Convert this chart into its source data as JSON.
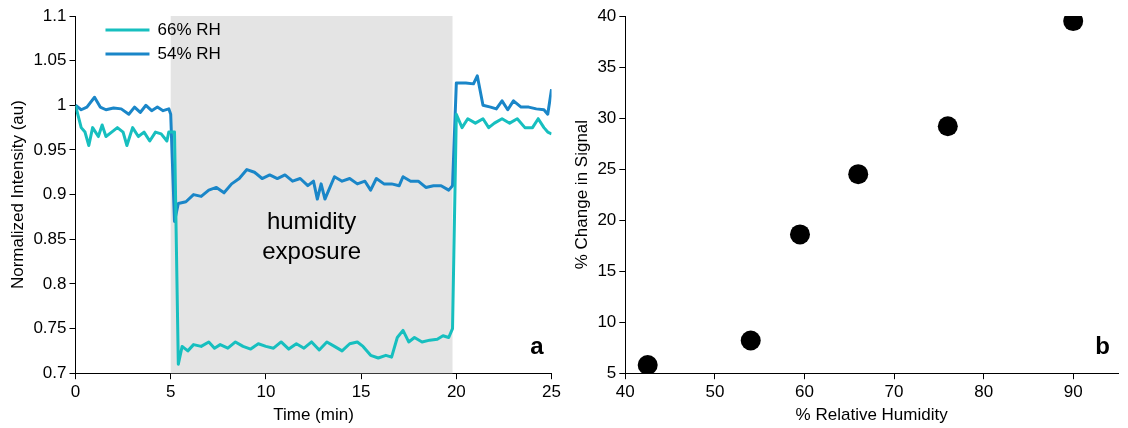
{
  "chart_data": [
    {
      "type": "line",
      "xlabel": "Time (min)",
      "ylabel": "Normalized Intensity (au)",
      "xlim": [
        0,
        25
      ],
      "xticks": [
        0,
        5,
        10,
        15,
        20,
        25
      ],
      "ylim": [
        0.7,
        1.1
      ],
      "yticks": [
        0.7,
        0.75,
        0.8,
        0.85,
        0.9,
        0.95,
        1,
        1.05,
        1.1
      ],
      "legend": "top left",
      "marker": "none",
      "line_style": "solid",
      "bands": [
        {
          "axis": "x",
          "from": 5,
          "to": 19.8,
          "label": "humidity exposure",
          "color": "#e4e4e4"
        }
      ],
      "annotations": [
        "a"
      ],
      "series": [
        {
          "name": "66% RH",
          "color": "#17bfbf",
          "x": [
            0,
            0.3,
            0.5,
            0.7,
            0.9,
            1.2,
            1.4,
            1.6,
            1.9,
            2.2,
            2.5,
            2.7,
            3.0,
            3.3,
            3.6,
            3.9,
            4.2,
            4.5,
            4.8,
            4.9,
            5.2,
            5.4,
            5.6,
            5.9,
            6.2,
            6.6,
            7.0,
            7.3,
            7.6,
            8.0,
            8.4,
            8.8,
            9.2,
            9.6,
            10.0,
            10.4,
            10.8,
            11.2,
            11.6,
            12.0,
            12.4,
            12.8,
            13.2,
            13.6,
            14.0,
            14.4,
            14.8,
            15.1,
            15.5,
            15.9,
            16.3,
            16.6,
            16.9,
            17.2,
            17.5,
            17.8,
            18.2,
            18.6,
            19.0,
            19.3,
            19.6,
            19.8,
            20.0,
            20.3,
            20.6,
            21.0,
            21.4,
            21.7,
            22.0,
            22.4,
            22.8,
            23.2,
            23.6,
            24.0,
            24.3,
            24.6,
            24.8,
            25
          ],
          "values": [
            1.0,
            0.975,
            0.97,
            0.955,
            0.975,
            0.965,
            0.978,
            0.965,
            0.97,
            0.975,
            0.97,
            0.955,
            0.975,
            0.965,
            0.97,
            0.96,
            0.97,
            0.968,
            0.96,
            0.97,
            0.97,
            0.71,
            0.73,
            0.725,
            0.732,
            0.73,
            0.735,
            0.728,
            0.732,
            0.728,
            0.735,
            0.73,
            0.727,
            0.733,
            0.73,
            0.728,
            0.735,
            0.727,
            0.733,
            0.728,
            0.735,
            0.726,
            0.735,
            0.73,
            0.725,
            0.733,
            0.735,
            0.73,
            0.72,
            0.717,
            0.72,
            0.718,
            0.74,
            0.748,
            0.735,
            0.74,
            0.735,
            0.737,
            0.738,
            0.742,
            0.74,
            0.75,
            0.99,
            0.975,
            0.985,
            0.98,
            0.985,
            0.975,
            0.98,
            0.985,
            0.98,
            0.985,
            0.975,
            0.975,
            0.985,
            0.975,
            0.97,
            0.968
          ]
        },
        {
          "name": "54% RH",
          "color": "#1a86c8",
          "x": [
            0,
            0.3,
            0.6,
            1.0,
            1.3,
            1.6,
            2.0,
            2.4,
            2.8,
            3.1,
            3.4,
            3.7,
            4.0,
            4.3,
            4.6,
            4.9,
            5.0,
            5.2,
            5.4,
            5.8,
            6.2,
            6.6,
            7.0,
            7.4,
            7.8,
            8.2,
            8.6,
            9.0,
            9.4,
            9.8,
            10.2,
            10.6,
            11.0,
            11.4,
            11.8,
            12.2,
            12.5,
            12.7,
            12.9,
            13.1,
            13.3,
            13.6,
            14.0,
            14.4,
            14.8,
            15.2,
            15.5,
            15.8,
            16.2,
            16.6,
            17.0,
            17.2,
            17.6,
            18.0,
            18.4,
            18.8,
            19.2,
            19.6,
            19.8,
            20.0,
            20.5,
            20.9,
            21.1,
            21.4,
            21.8,
            22.1,
            22.4,
            22.7,
            23.0,
            23.4,
            23.8,
            24.2,
            24.6,
            24.8,
            25
          ],
          "values": [
            1.0,
            0.995,
            0.998,
            1.009,
            0.998,
            0.995,
            0.997,
            0.996,
            0.99,
            0.998,
            0.992,
            1.0,
            0.994,
            0.998,
            0.994,
            0.996,
            0.99,
            0.87,
            0.89,
            0.892,
            0.9,
            0.898,
            0.905,
            0.908,
            0.902,
            0.912,
            0.918,
            0.928,
            0.925,
            0.918,
            0.922,
            0.918,
            0.922,
            0.915,
            0.918,
            0.91,
            0.915,
            0.895,
            0.912,
            0.895,
            0.905,
            0.92,
            0.915,
            0.918,
            0.912,
            0.915,
            0.905,
            0.918,
            0.912,
            0.912,
            0.91,
            0.92,
            0.915,
            0.915,
            0.908,
            0.91,
            0.91,
            0.905,
            0.91,
            1.025,
            1.025,
            1.024,
            1.033,
            1.0,
            0.998,
            0.996,
            1.005,
            0.995,
            1.005,
            0.998,
            0.998,
            0.996,
            0.995,
            0.99,
            1.018
          ]
        }
      ]
    },
    {
      "type": "scatter",
      "xlabel": "% Relative Humidity",
      "ylabel": "% Change in Signal",
      "xlim": [
        40,
        95
      ],
      "xticks": [
        40,
        50,
        60,
        70,
        80,
        90
      ],
      "ylim": [
        5,
        40
      ],
      "yticks": [
        5,
        10,
        15,
        20,
        25,
        30,
        35,
        40
      ],
      "marker": "circle",
      "annotations": [
        "b"
      ],
      "series": [
        {
          "color": "#000000",
          "x": [
            42.5,
            54,
            59.5,
            66,
            76,
            90
          ],
          "values": [
            5.8,
            8.2,
            18.6,
            24.5,
            29.2,
            39.5
          ]
        }
      ]
    }
  ]
}
